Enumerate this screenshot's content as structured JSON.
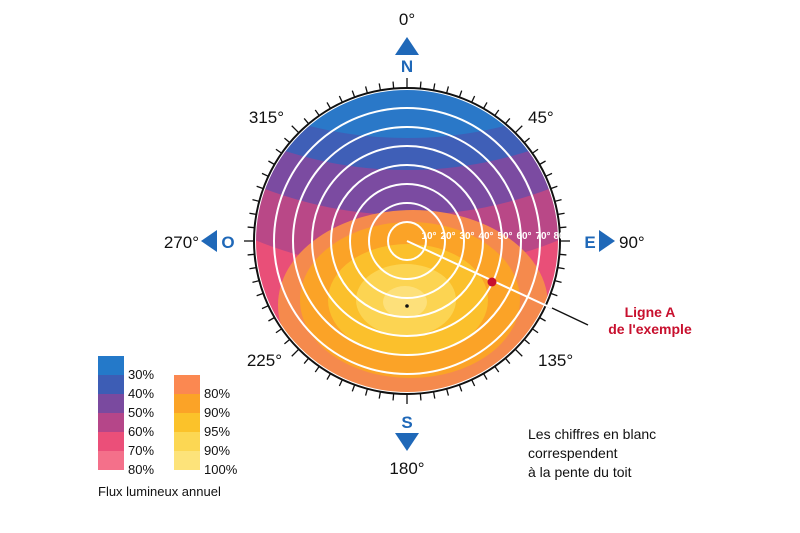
{
  "compass": {
    "north": "N",
    "south": "S",
    "east": "E",
    "west": "O",
    "deg_0": "0°",
    "deg_45": "45°",
    "deg_90": "90°",
    "deg_135": "135°",
    "deg_180": "180°",
    "deg_225": "225°",
    "deg_270": "270°",
    "deg_315": "315°",
    "arrow_color": "#1f68b8"
  },
  "slope_labels": [
    "10°",
    "20°",
    "30°",
    "40°",
    "50°",
    "60°",
    "70°",
    "80°"
  ],
  "example": {
    "line_1": "Ligne A",
    "line_2": "de l'exemple",
    "color": "#c8102e"
  },
  "legend": {
    "title": "Flux lumineux annuel",
    "cool": [
      {
        "label": "30%",
        "color": "#2479c9"
      },
      {
        "label": "40%",
        "color": "#3d5db5"
      },
      {
        "label": "50%",
        "color": "#7a4a9f"
      },
      {
        "label": "60%",
        "color": "#b54689"
      },
      {
        "label": "70%",
        "color": "#eb4f79"
      },
      {
        "label": "80%",
        "color": "#f4708a"
      }
    ],
    "warm": [
      {
        "label": "80%",
        "color": "#fb8851"
      },
      {
        "label": "90%",
        "color": "#fba327"
      },
      {
        "label": "95%",
        "color": "#fbc22a"
      },
      {
        "label": "90%",
        "color": "#fcd753"
      },
      {
        "label": "100%",
        "color": "#fde37a"
      }
    ]
  },
  "note": {
    "line_1": "Les chiffres en blanc",
    "line_2": "correspendent",
    "line_3": "à la pente du toit"
  }
}
